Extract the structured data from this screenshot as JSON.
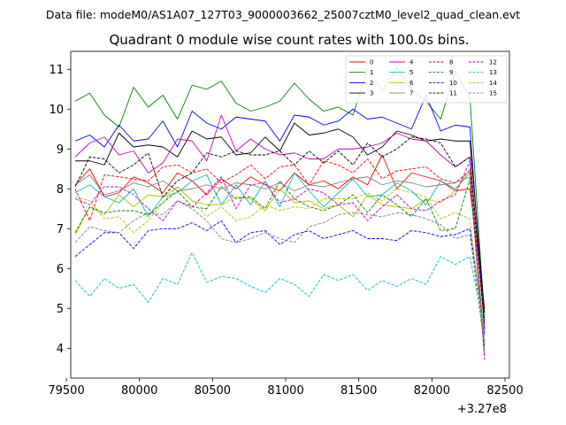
{
  "chart_data": {
    "type": "line",
    "suptitle": "Data file: modeM0/AS1A07_127T03_9000003662_25007cztM0_level2_quad_clean.evt",
    "title": "Quadrant 0 module wise count rates with 100.0s bins.",
    "xlabel": "",
    "ylabel": "",
    "x_offset_label": "+3.27e8",
    "xlim": [
      79530,
      82530
    ],
    "ylim": [
      3.25,
      11.45
    ],
    "xticks": [
      79500,
      80000,
      80500,
      81000,
      81500,
      82000,
      82500
    ],
    "yticks": [
      4,
      5,
      6,
      7,
      8,
      9,
      10,
      11
    ],
    "x": [
      79560,
      79660,
      79760,
      79860,
      79960,
      80060,
      80160,
      80260,
      80360,
      80460,
      80560,
      80660,
      80760,
      80860,
      80960,
      81060,
      81160,
      81260,
      81360,
      81460,
      81560,
      81660,
      81760,
      81860,
      81960,
      82060,
      82160,
      82260,
      82360
    ],
    "series": [
      {
        "name": "0",
        "color": "#ff0000",
        "dash": "solid",
        "values": [
          8.1,
          8.5,
          7.8,
          7.9,
          8.3,
          8.15,
          7.9,
          8.4,
          8.2,
          7.85,
          8.25,
          8.0,
          8.3,
          8.1,
          7.95,
          8.4,
          8.1,
          8.2,
          8.0,
          8.3,
          8.1,
          8.85,
          8.0,
          8.4,
          8.3,
          8.2,
          7.95,
          8.0,
          5.0
        ]
      },
      {
        "name": "1",
        "color": "#008000",
        "dash": "solid",
        "values": [
          10.2,
          10.4,
          9.85,
          9.55,
          10.55,
          10.05,
          10.35,
          9.75,
          10.6,
          10.5,
          10.7,
          10.15,
          9.95,
          10.05,
          10.2,
          10.65,
          10.25,
          9.95,
          10.05,
          9.85,
          11.0,
          10.45,
          11.05,
          10.5,
          10.2,
          9.75,
          10.95,
          10.3,
          4.7
        ]
      },
      {
        "name": "2",
        "color": "#0000ff",
        "dash": "solid",
        "values": [
          9.2,
          9.35,
          9.05,
          9.6,
          9.2,
          9.25,
          9.7,
          9.05,
          9.95,
          9.65,
          9.5,
          9.8,
          9.75,
          9.7,
          9.2,
          9.85,
          9.8,
          9.6,
          9.7,
          10.0,
          9.75,
          9.8,
          9.65,
          9.5,
          10.35,
          9.45,
          9.6,
          9.55,
          4.4
        ]
      },
      {
        "name": "3",
        "color": "#000000",
        "dash": "solid",
        "values": [
          8.7,
          8.7,
          8.6,
          9.4,
          9.05,
          9.1,
          9.05,
          8.8,
          9.45,
          9.25,
          9.3,
          8.85,
          8.9,
          9.3,
          8.95,
          9.65,
          9.35,
          9.4,
          9.5,
          9.3,
          8.85,
          9.05,
          9.45,
          9.35,
          9.2,
          9.25,
          9.2,
          9.2,
          4.9
        ]
      },
      {
        "name": "4",
        "color": "#c000c0",
        "dash": "solid",
        "values": [
          8.8,
          9.15,
          9.3,
          8.85,
          8.95,
          8.4,
          8.65,
          9.25,
          9.2,
          8.7,
          9.85,
          8.95,
          9.25,
          9.0,
          8.85,
          8.9,
          8.75,
          8.75,
          9.0,
          9.0,
          9.05,
          9.15,
          9.4,
          9.25,
          9.2,
          8.85,
          8.55,
          8.8,
          4.5
        ]
      },
      {
        "name": "5",
        "color": "#00bfbf",
        "dash": "solid",
        "values": [
          7.9,
          8.1,
          7.8,
          7.65,
          8.0,
          7.3,
          7.8,
          7.9,
          8.2,
          8.35,
          7.6,
          8.1,
          7.6,
          8.2,
          7.55,
          8.4,
          7.95,
          7.55,
          7.9,
          8.25,
          7.8,
          7.85,
          8.15,
          7.95,
          7.6,
          8.2,
          8.0,
          8.4,
          4.1
        ]
      },
      {
        "name": "6",
        "color": "#bfbf00",
        "dash": "solid",
        "values": [
          6.85,
          7.55,
          7.35,
          7.85,
          7.55,
          7.85,
          7.8,
          8.05,
          7.7,
          7.6,
          7.6,
          7.8,
          7.75,
          7.45,
          8.0,
          7.65,
          7.7,
          7.5,
          7.6,
          7.3,
          7.85,
          7.6,
          7.55,
          7.5,
          7.75,
          7.65,
          7.95,
          8.5,
          3.9
        ]
      },
      {
        "name": "7",
        "color": "#808080",
        "dash": "solid",
        "values": [
          8.1,
          8.35,
          7.85,
          7.95,
          8.15,
          8.05,
          8.2,
          7.95,
          8.0,
          8.1,
          8.0,
          8.15,
          8.1,
          8.0,
          8.15,
          7.95,
          8.1,
          8.05,
          8.15,
          8.25,
          8.3,
          8.1,
          8.2,
          8.15,
          8.05,
          8.1,
          8.15,
          8.3,
          3.8
        ]
      },
      {
        "name": "8",
        "color": "#ff0000",
        "dash": "dashed",
        "values": [
          8.0,
          7.2,
          8.35,
          8.3,
          8.25,
          8.2,
          8.55,
          8.6,
          8.4,
          8.5,
          8.15,
          8.35,
          8.6,
          8.25,
          8.55,
          8.6,
          8.1,
          8.7,
          8.6,
          8.4,
          8.75,
          8.25,
          8.45,
          8.5,
          8.55,
          8.25,
          8.15,
          8.45,
          4.6
        ]
      },
      {
        "name": "9",
        "color": "#008000",
        "dash": "dashed",
        "values": [
          6.9,
          7.55,
          7.4,
          7.45,
          7.45,
          7.35,
          7.65,
          7.95,
          7.55,
          7.5,
          8.05,
          7.75,
          7.8,
          7.5,
          8.2,
          7.75,
          7.55,
          7.45,
          7.6,
          7.85,
          7.4,
          7.85,
          7.6,
          7.3,
          7.75,
          6.95,
          7.0,
          8.25,
          4.0
        ]
      },
      {
        "name": "10",
        "color": "#0000ff",
        "dash": "dashed",
        "values": [
          6.3,
          6.6,
          6.9,
          6.9,
          6.5,
          6.95,
          7.0,
          7.0,
          7.15,
          6.95,
          7.2,
          6.65,
          6.9,
          6.95,
          6.6,
          6.85,
          6.95,
          6.75,
          6.85,
          6.95,
          6.75,
          6.75,
          6.7,
          6.95,
          6.9,
          6.8,
          6.85,
          7.0,
          4.3
        ]
      },
      {
        "name": "11",
        "color": "#000000",
        "dash": "dashed",
        "values": [
          8.05,
          8.8,
          8.75,
          8.4,
          8.6,
          8.9,
          7.8,
          8.2,
          8.4,
          8.9,
          8.8,
          8.95,
          8.85,
          8.85,
          8.95,
          8.6,
          8.95,
          8.65,
          8.95,
          8.6,
          9.15,
          8.8,
          9.0,
          9.3,
          9.25,
          9.15,
          8.55,
          8.8,
          4.6
        ]
      },
      {
        "name": "12",
        "color": "#c000c0",
        "dash": "dashed",
        "values": [
          7.75,
          7.6,
          8.05,
          8.05,
          7.85,
          7.5,
          7.2,
          7.7,
          7.55,
          7.9,
          8.3,
          7.5,
          8.1,
          8.15,
          7.65,
          7.75,
          8.0,
          7.9,
          7.6,
          7.65,
          7.2,
          7.55,
          7.85,
          7.5,
          7.45,
          7.7,
          7.85,
          8.7,
          3.7
        ]
      },
      {
        "name": "13",
        "color": "#00bfbf",
        "dash": "dashed",
        "values": [
          5.7,
          5.3,
          5.75,
          5.5,
          5.6,
          5.15,
          5.75,
          5.6,
          6.4,
          5.65,
          5.8,
          5.75,
          5.55,
          5.4,
          5.75,
          5.6,
          5.3,
          5.85,
          5.7,
          5.85,
          5.45,
          5.7,
          5.55,
          5.75,
          5.6,
          6.3,
          6.1,
          6.3,
          4.4
        ]
      },
      {
        "name": "14",
        "color": "#bfbf00",
        "dash": "dashed",
        "values": [
          7.8,
          7.7,
          7.25,
          7.3,
          6.9,
          7.2,
          7.65,
          8.05,
          7.7,
          7.3,
          7.55,
          7.2,
          7.3,
          7.6,
          7.45,
          7.55,
          7.5,
          7.75,
          7.75,
          7.75,
          7.9,
          7.7,
          8.0,
          7.9,
          7.8,
          7.25,
          7.4,
          7.25,
          4.2
        ]
      },
      {
        "name": "15",
        "color": "#808080",
        "dash": "dashed",
        "values": [
          6.65,
          7.05,
          6.95,
          6.9,
          7.2,
          7.4,
          7.35,
          7.7,
          7.5,
          7.2,
          6.75,
          6.65,
          6.75,
          6.9,
          6.75,
          6.65,
          7.05,
          7.15,
          7.35,
          7.4,
          7.35,
          7.3,
          7.4,
          7.35,
          7.25,
          7.1,
          6.75,
          6.85,
          4.0
        ]
      }
    ]
  }
}
